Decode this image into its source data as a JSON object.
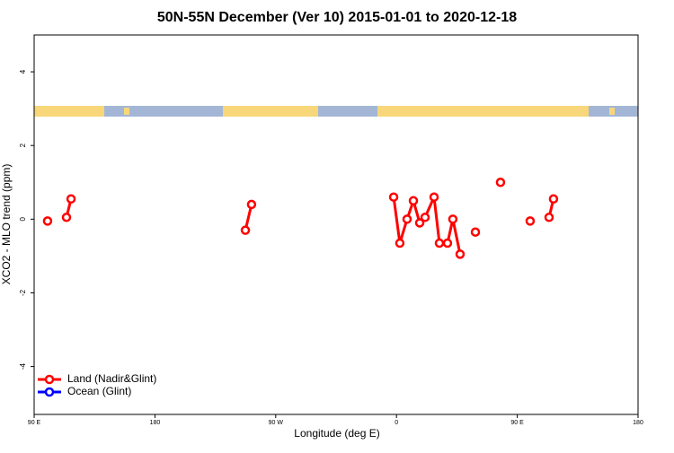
{
  "chart_data": {
    "type": "line",
    "title": "50N-55N December (Ver 10)   2015-01-01 to 2020-12-18",
    "x_label": "Longitude (deg E)",
    "y_label": "XCO2 - MLO trend (ppm)",
    "x": [
      100,
      null,
      114.1,
      117.5,
      null,
      247.4,
      252,
      null,
      357.9,
      362.5,
      367.9,
      372.6,
      377.3,
      381.3,
      388,
      392,
      398,
      402,
      407.4,
      null,
      418.8,
      null,
      437.5,
      null,
      459.6,
      null,
      473.7,
      477
    ],
    "series": [
      {
        "name": "Land (Nadir&Glint)",
        "color": "#ff0000",
        "values": [
          -0.05,
          null,
          0.05,
          0.55,
          null,
          -0.3,
          0.4,
          null,
          0.6,
          -0.65,
          0,
          0.5,
          -0.1,
          0.05,
          0.6,
          -0.65,
          -0.65,
          0,
          -0.95,
          null,
          -0.35,
          null,
          1.0,
          null,
          -0.05,
          null,
          0.05,
          0.55
        ]
      },
      {
        "name": "Ocean (Glint)",
        "color": "#0000ff",
        "values": [
          null,
          null,
          null,
          null,
          null,
          null,
          null,
          null,
          null,
          null,
          null,
          null,
          null,
          null,
          null,
          null,
          null,
          null,
          null,
          null,
          null,
          null,
          null,
          null,
          null,
          null,
          null,
          null
        ]
      }
    ],
    "xlim": [
      90,
      540
    ],
    "xticks": [
      {
        "value": 90,
        "label": "90 E"
      },
      180,
      {
        "value": 270,
        "label": "90 W"
      },
      {
        "value": 360,
        "label": "0"
      },
      {
        "value": 450,
        "label": "90 E"
      },
      {
        "value": 540,
        "label": "180"
      }
    ],
    "ylim": [
      -5.3,
      5
    ],
    "yticks": [
      -4,
      -2,
      0,
      2,
      4
    ],
    "legend": "bottom-left"
  }
}
